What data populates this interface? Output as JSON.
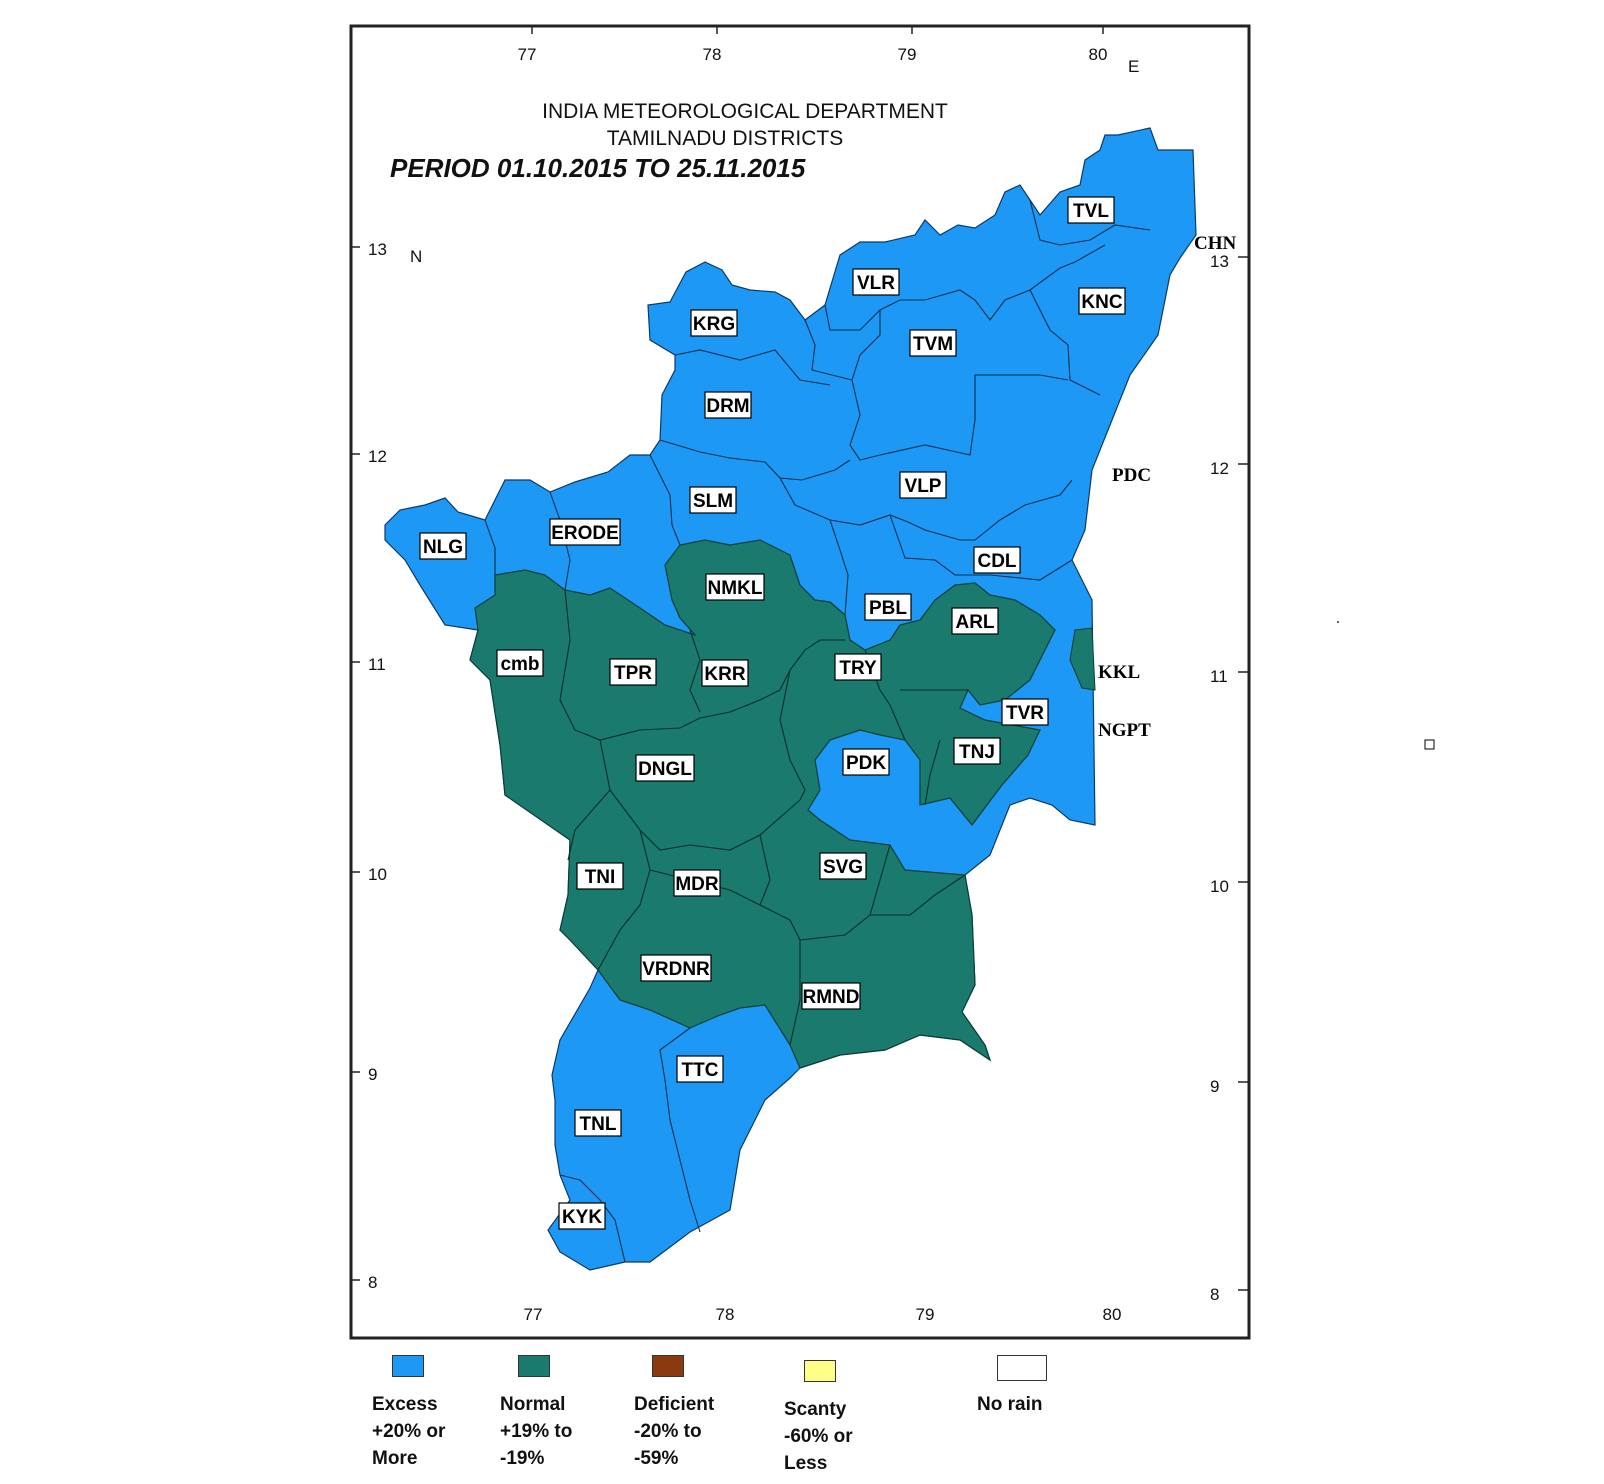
{
  "title": {
    "line1": "INDIA METEOROLOGICAL DEPARTMENT",
    "line2": "TAMILNADU DISTRICTS",
    "period": "PERIOD 01.10.2015 TO 25.11.2015"
  },
  "axes": {
    "top_lon": [
      "77",
      "78",
      "79",
      "80"
    ],
    "top_lon_suffix": "E",
    "bottom_lon": [
      "77",
      "78",
      "79",
      "80"
    ],
    "left_lat": [
      "13",
      "12",
      "11",
      "10",
      "9",
      "8"
    ],
    "left_lat_suffix": "N",
    "right_lat": [
      "13",
      "12",
      "11",
      "10",
      "9",
      "8"
    ]
  },
  "colors": {
    "excess": "#1e98f5",
    "normal": "#1b7a6e",
    "deficient": "#8b3a0f",
    "scanty": "#ffff88",
    "no_rain": "#ffffff"
  },
  "districts": [
    {
      "code": "TVL",
      "category": "excess"
    },
    {
      "code": "VLR",
      "category": "excess"
    },
    {
      "code": "KNC",
      "category": "excess"
    },
    {
      "code": "KRG",
      "category": "excess"
    },
    {
      "code": "TVM",
      "category": "excess"
    },
    {
      "code": "DRM",
      "category": "excess"
    },
    {
      "code": "VLP",
      "category": "excess"
    },
    {
      "code": "SLM",
      "category": "excess"
    },
    {
      "code": "ERODE",
      "category": "excess"
    },
    {
      "code": "NLG",
      "category": "excess"
    },
    {
      "code": "CDL",
      "category": "excess"
    },
    {
      "code": "NMKL",
      "category": "normal"
    },
    {
      "code": "PBL",
      "category": "excess"
    },
    {
      "code": "ARL",
      "category": "normal"
    },
    {
      "code": "cmb",
      "category": "normal"
    },
    {
      "code": "TPR",
      "category": "normal"
    },
    {
      "code": "KRR",
      "category": "normal"
    },
    {
      "code": "TRY",
      "category": "normal"
    },
    {
      "code": "TVR",
      "category": "excess"
    },
    {
      "code": "DNGL",
      "category": "normal"
    },
    {
      "code": "PDK",
      "category": "excess"
    },
    {
      "code": "TNJ",
      "category": "normal"
    },
    {
      "code": "TNI",
      "category": "normal"
    },
    {
      "code": "MDR",
      "category": "normal"
    },
    {
      "code": "SVG",
      "category": "normal"
    },
    {
      "code": "VRDNR",
      "category": "normal"
    },
    {
      "code": "RMND",
      "category": "normal"
    },
    {
      "code": "TTC",
      "category": "excess"
    },
    {
      "code": "TNL",
      "category": "excess"
    },
    {
      "code": "KYK",
      "category": "excess"
    }
  ],
  "outside_labels": [
    "CHN",
    "PDC",
    "KKL",
    "NGPT"
  ],
  "legend": [
    {
      "key": "excess",
      "label": "Excess\n+20% or\nMore"
    },
    {
      "key": "normal",
      "label": "Normal\n+19% to\n-19%"
    },
    {
      "key": "deficient",
      "label": "Deficient\n-20% to\n-59%"
    },
    {
      "key": "scanty",
      "label": "Scanty\n-60% or\nLess"
    },
    {
      "key": "no_rain",
      "label": "No rain"
    }
  ]
}
